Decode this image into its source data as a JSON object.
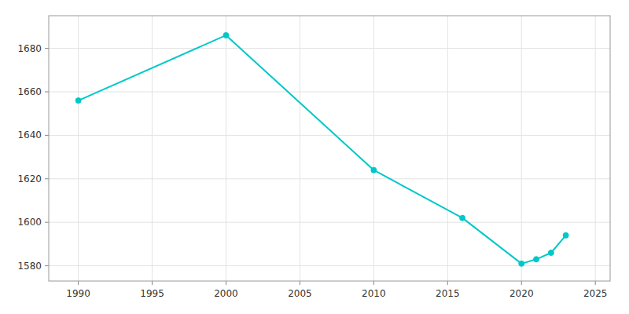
{
  "chart_data": {
    "type": "line",
    "x": [
      1990,
      2000,
      2010,
      2016,
      2020,
      2021,
      2022,
      2023
    ],
    "values": [
      1656,
      1686,
      1624,
      1602,
      1581,
      1583,
      1586,
      1594
    ],
    "color": "#00c8c8",
    "marker": "circle",
    "xlim": [
      1988,
      2026
    ],
    "ylim": [
      1573,
      1695
    ],
    "xticks": [
      1990,
      1995,
      2000,
      2005,
      2010,
      2015,
      2020,
      2025
    ],
    "yticks": [
      1580,
      1600,
      1620,
      1640,
      1660,
      1680
    ],
    "grid": true
  }
}
